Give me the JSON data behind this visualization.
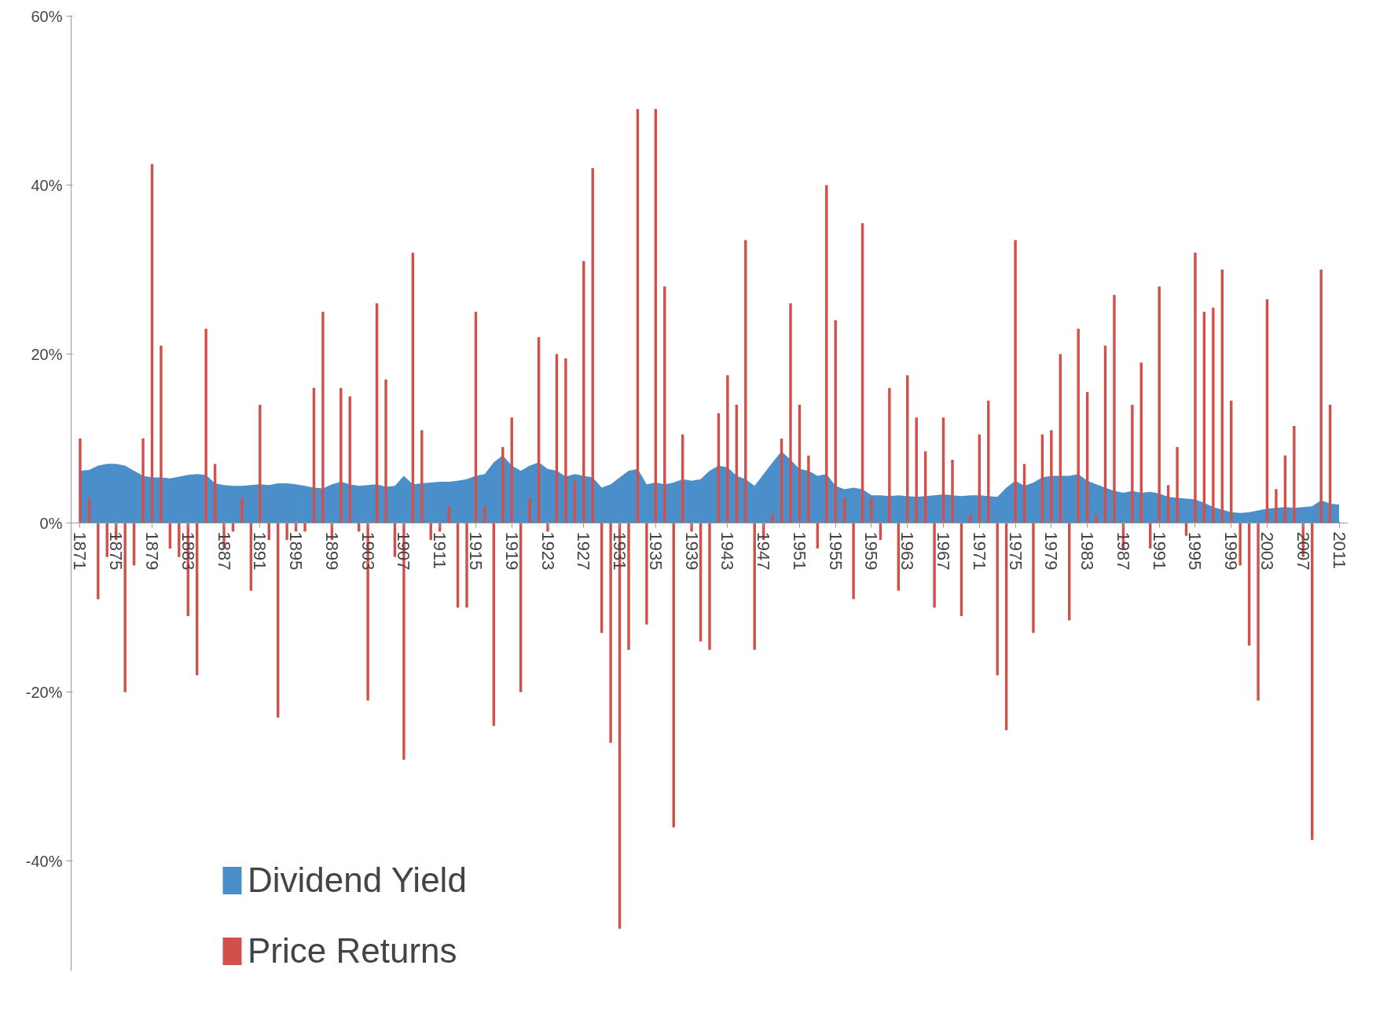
{
  "chart_data": {
    "type": "bar",
    "x": [
      1871,
      1872,
      1873,
      1874,
      1875,
      1876,
      1877,
      1878,
      1879,
      1880,
      1881,
      1882,
      1883,
      1884,
      1885,
      1886,
      1887,
      1888,
      1889,
      1890,
      1891,
      1892,
      1893,
      1894,
      1895,
      1896,
      1897,
      1898,
      1899,
      1900,
      1901,
      1902,
      1903,
      1904,
      1905,
      1906,
      1907,
      1908,
      1909,
      1910,
      1911,
      1912,
      1913,
      1914,
      1915,
      1916,
      1917,
      1918,
      1919,
      1920,
      1921,
      1922,
      1923,
      1924,
      1925,
      1926,
      1927,
      1928,
      1929,
      1930,
      1931,
      1932,
      1933,
      1934,
      1935,
      1936,
      1937,
      1938,
      1939,
      1940,
      1941,
      1942,
      1943,
      1944,
      1945,
      1946,
      1947,
      1948,
      1949,
      1950,
      1951,
      1952,
      1953,
      1954,
      1955,
      1956,
      1957,
      1958,
      1959,
      1960,
      1961,
      1962,
      1963,
      1964,
      1965,
      1966,
      1967,
      1968,
      1969,
      1970,
      1971,
      1972,
      1973,
      1974,
      1975,
      1976,
      1977,
      1978,
      1979,
      1980,
      1981,
      1982,
      1983,
      1984,
      1985,
      1986,
      1987,
      1988,
      1989,
      1990,
      1991,
      1992,
      1993,
      1994,
      1995,
      1996,
      1997,
      1998,
      1999,
      2000,
      2001,
      2002,
      2003,
      2004,
      2005,
      2006,
      2007,
      2008,
      2009,
      2010,
      2011
    ],
    "series": [
      {
        "name": "Dividend Yield",
        "type": "area",
        "color": "#4a8fc9",
        "values": [
          6.2,
          6.3,
          6.8,
          7.0,
          7.0,
          6.8,
          6.2,
          5.6,
          5.4,
          5.4,
          5.3,
          5.5,
          5.7,
          5.8,
          5.7,
          4.7,
          4.5,
          4.4,
          4.4,
          4.5,
          4.6,
          4.5,
          4.7,
          4.7,
          4.6,
          4.4,
          4.2,
          4.1,
          4.6,
          4.9,
          4.6,
          4.4,
          4.5,
          4.6,
          4.3,
          4.4,
          5.6,
          4.6,
          4.7,
          4.8,
          4.9,
          4.9,
          5.0,
          5.2,
          5.6,
          5.8,
          7.2,
          8.0,
          6.8,
          6.2,
          6.8,
          7.2,
          6.4,
          6.2,
          5.5,
          5.8,
          5.6,
          5.4,
          4.2,
          4.6,
          5.4,
          6.2,
          6.4,
          4.6,
          4.8,
          4.6,
          4.8,
          5.2,
          5.0,
          5.2,
          6.2,
          6.8,
          6.6,
          5.6,
          5.2,
          4.4,
          5.8,
          7.2,
          8.5,
          7.5,
          6.4,
          6.2,
          5.6,
          5.8,
          4.4,
          4.0,
          4.2,
          4.0,
          3.3,
          3.3,
          3.2,
          3.3,
          3.2,
          3.1,
          3.2,
          3.3,
          3.4,
          3.3,
          3.2,
          3.3,
          3.3,
          3.2,
          3.1,
          4.2,
          5.0,
          4.4,
          4.8,
          5.4,
          5.6,
          5.6,
          5.6,
          5.8,
          5.0,
          4.6,
          4.2,
          3.8,
          3.6,
          3.8,
          3.6,
          3.7,
          3.5,
          3.1,
          3.0,
          2.9,
          2.8,
          2.4,
          1.9,
          1.6,
          1.3,
          1.2,
          1.3,
          1.5,
          1.7,
          1.8,
          1.9,
          1.8,
          1.9,
          2.0,
          2.7,
          2.3,
          2.2
        ]
      },
      {
        "name": "Price Returns",
        "color": "#d2504c",
        "values": [
          10,
          3,
          -9,
          -4,
          -2,
          -20,
          -5,
          10,
          42.5,
          21,
          -3,
          -4,
          -11,
          -18,
          23,
          7,
          -3,
          -1,
          3,
          -8,
          14,
          -2,
          -23,
          -2,
          -1,
          -1,
          16,
          25,
          -2,
          16,
          15,
          -1,
          -21,
          26,
          17,
          -4,
          -28,
          32,
          11,
          -2,
          -1,
          2,
          -10,
          -10,
          25,
          2,
          -24,
          9,
          12.5,
          -20,
          3,
          22,
          -1,
          20,
          19.5,
          5,
          31,
          42,
          -13,
          -26,
          -48,
          -15,
          49,
          -12,
          49,
          28,
          -36,
          10.5,
          -1,
          -14,
          -15,
          13,
          17.5,
          14,
          33.5,
          -15,
          -2,
          1,
          10,
          26,
          14,
          8,
          -3,
          40,
          24,
          3,
          -9,
          35.5,
          3,
          -2,
          16,
          -8,
          17.5,
          12.5,
          8.5,
          -10,
          12.5,
          7.5,
          -11,
          1,
          10.5,
          14.5,
          -18,
          -24.5,
          33.5,
          7,
          -13,
          10.5,
          11,
          20,
          -11.5,
          23,
          15.5,
          1,
          21,
          27,
          -3,
          14,
          19,
          -3,
          28,
          4.5,
          9,
          -1.5,
          32,
          25,
          25.5,
          30,
          14.5,
          -5,
          -14.5,
          -21,
          26.5,
          4,
          8,
          11.5,
          -4,
          -37.5,
          30,
          14,
          null
        ]
      }
    ],
    "xlim": [
      1870,
      2012
    ],
    "xticks": [
      1871,
      1875,
      1879,
      1883,
      1887,
      1891,
      1895,
      1899,
      1903,
      1907,
      1911,
      1915,
      1919,
      1923,
      1927,
      1931,
      1935,
      1939,
      1943,
      1947,
      1951,
      1955,
      1959,
      1963,
      1967,
      1971,
      1975,
      1979,
      1983,
      1987,
      1991,
      1995,
      1999,
      2003,
      2007,
      2011
    ],
    "ylim": [
      -53,
      60
    ],
    "yticks": [
      {
        "value": -40,
        "label": "-40%"
      },
      {
        "value": -20,
        "label": "-20%"
      },
      {
        "value": 0,
        "label": "0%"
      },
      {
        "value": 20,
        "label": "20%"
      },
      {
        "value": 40,
        "label": "40%"
      },
      {
        "value": 60,
        "label": "60%"
      }
    ],
    "grid": false,
    "legend": "bottom left"
  }
}
